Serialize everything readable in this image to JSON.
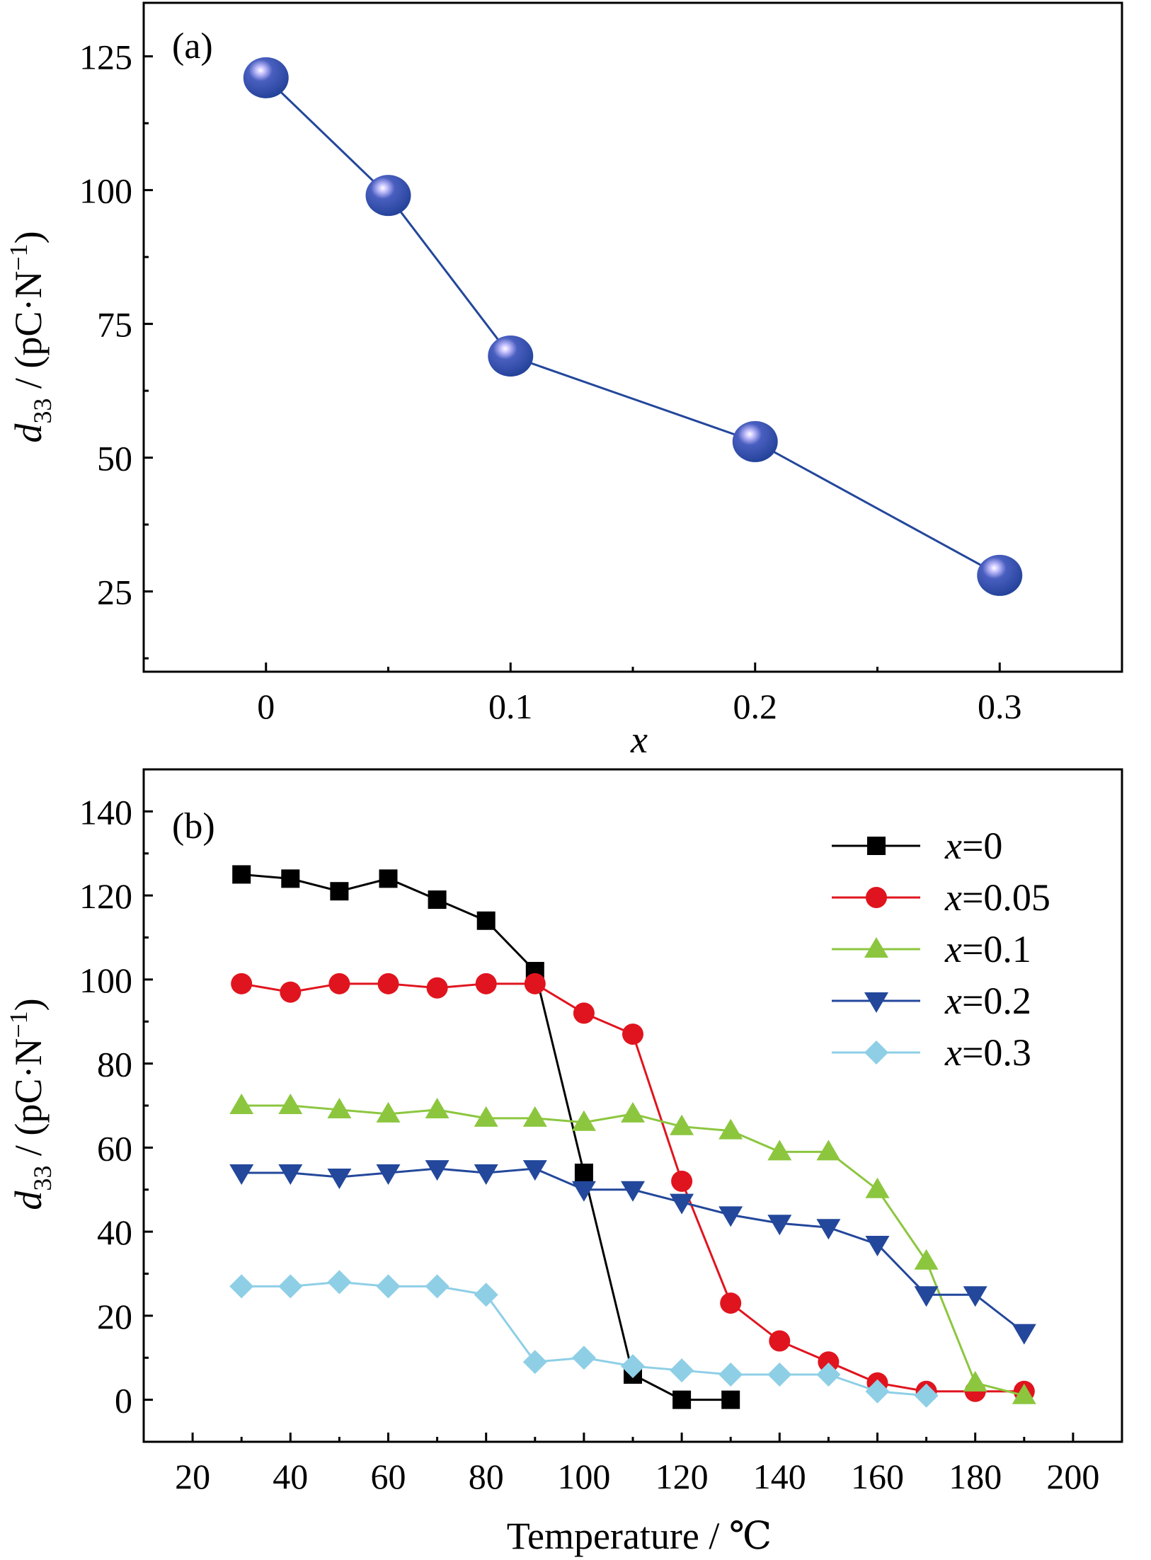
{
  "chart_data": [
    {
      "type": "line",
      "panel_label": "(a)",
      "xlabel": "x",
      "ylabel_main": "d",
      "ylabel_sub": "33",
      "ylabel_rest": " / (pC·N",
      "ylabel_sup": "−1",
      "ylabel_close": ")",
      "xlim": [
        -0.05,
        0.35
      ],
      "ylim": [
        10,
        135
      ],
      "xticks": [
        0,
        0.1,
        0.2,
        0.3
      ],
      "xtick_labels": [
        "0",
        "0.1",
        "0.2",
        "0.3"
      ],
      "yticks": [
        25,
        50,
        75,
        100,
        125
      ],
      "ytick_labels": [
        "25",
        "50",
        "75",
        "100",
        "125"
      ],
      "grid": false,
      "series": [
        {
          "color": "#23479b",
          "marker": "sphere",
          "x": [
            0,
            0.05,
            0.1,
            0.2,
            0.3
          ],
          "y": [
            121,
            99,
            69,
            53,
            28
          ]
        }
      ]
    },
    {
      "type": "line",
      "panel_label": "(b)",
      "xlabel": "Temperature  / ℃",
      "ylabel_main": "d",
      "ylabel_sub": "33",
      "ylabel_rest": " / (pC·N",
      "ylabel_sup": "−1",
      "ylabel_close": ")",
      "xlim": [
        10,
        210
      ],
      "ylim": [
        -10,
        150
      ],
      "xticks": [
        20,
        40,
        60,
        80,
        100,
        120,
        140,
        160,
        180,
        200
      ],
      "xtick_labels": [
        "20",
        "40",
        "60",
        "80",
        "100",
        "120",
        "140",
        "160",
        "180",
        "200"
      ],
      "yticks": [
        0,
        20,
        40,
        60,
        80,
        100,
        120,
        140
      ],
      "ytick_labels": [
        "0",
        "20",
        "40",
        "60",
        "80",
        "100",
        "120",
        "140"
      ],
      "grid": false,
      "legend_position": "top-right",
      "series": [
        {
          "name_var": "x",
          "name_val": "=0",
          "color": "#000000",
          "marker": "square",
          "x": [
            30,
            40,
            50,
            60,
            70,
            80,
            90,
            100,
            110,
            120,
            130
          ],
          "y": [
            125,
            124,
            121,
            124,
            119,
            114,
            102,
            54,
            6,
            0,
            0
          ]
        },
        {
          "name_var": "x",
          "name_val": "=0.05",
          "color": "#e0141e",
          "marker": "circle",
          "x": [
            30,
            40,
            50,
            60,
            70,
            80,
            90,
            100,
            110,
            120,
            130,
            140,
            150,
            160,
            170,
            180,
            190
          ],
          "y": [
            99,
            97,
            99,
            99,
            98,
            99,
            99,
            92,
            87,
            52,
            23,
            14,
            9,
            4,
            2,
            2,
            2
          ]
        },
        {
          "name_var": "x",
          "name_val": "=0.1",
          "color": "#8cc63f",
          "marker": "triangle-up",
          "x": [
            30,
            40,
            50,
            60,
            70,
            80,
            90,
            100,
            110,
            120,
            130,
            140,
            150,
            160,
            170,
            180,
            190
          ],
          "y": [
            70,
            70,
            69,
            68,
            69,
            67,
            67,
            66,
            68,
            65,
            64,
            59,
            59,
            50,
            33,
            4,
            1
          ]
        },
        {
          "name_var": "x",
          "name_val": "=0.2",
          "color": "#23479b",
          "marker": "triangle-down",
          "x": [
            30,
            40,
            50,
            60,
            70,
            80,
            90,
            100,
            110,
            120,
            130,
            140,
            150,
            160,
            170,
            180,
            190
          ],
          "y": [
            54,
            54,
            53,
            54,
            55,
            54,
            55,
            50,
            50,
            47,
            44,
            42,
            41,
            37,
            25,
            25,
            16
          ]
        },
        {
          "name_var": "x",
          "name_val": "=0.3",
          "color": "#8ecfe6",
          "marker": "diamond",
          "x": [
            30,
            40,
            50,
            60,
            70,
            80,
            90,
            100,
            110,
            120,
            130,
            140,
            150,
            160,
            170
          ],
          "y": [
            27,
            27,
            28,
            27,
            27,
            25,
            9,
            10,
            8,
            7,
            6,
            6,
            6,
            2,
            1
          ]
        }
      ]
    }
  ]
}
